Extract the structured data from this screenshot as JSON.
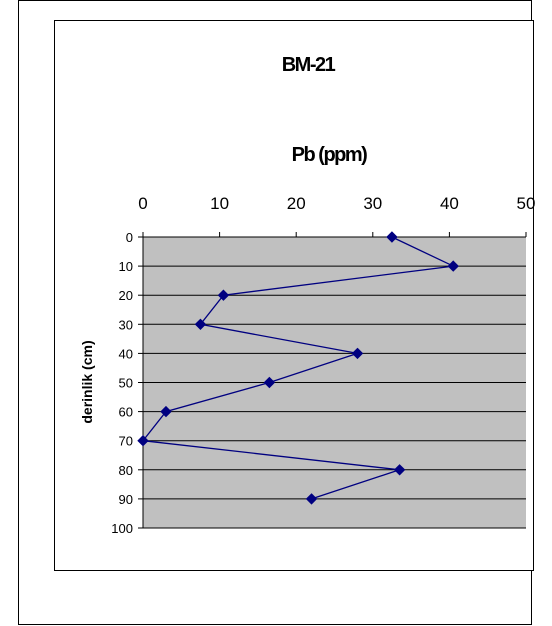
{
  "chart_data": {
    "type": "line",
    "title": "BM-21",
    "subtitle": "Pb (ppm)",
    "xlabel": "Pb (ppm)",
    "ylabel": "derinlik (cm)",
    "xlim": [
      0,
      50
    ],
    "ylim": [
      0,
      100
    ],
    "x_axis_position": "top",
    "y_axis_inverted": true,
    "x_ticks": [
      0,
      10,
      20,
      30,
      40,
      50
    ],
    "y_ticks": [
      0,
      10,
      20,
      30,
      40,
      50,
      60,
      70,
      80,
      90,
      100
    ],
    "grid": "horizontal",
    "plot_background": "#c0c0c0",
    "series_color": "#000080",
    "marker": "diamond",
    "series": [
      {
        "depth": [
          0,
          10,
          20,
          30,
          40,
          50,
          60,
          70,
          80,
          90
        ],
        "values": [
          32.5,
          40.5,
          10.5,
          7.5,
          28,
          16.5,
          3,
          0,
          33.5,
          22
        ]
      }
    ]
  }
}
